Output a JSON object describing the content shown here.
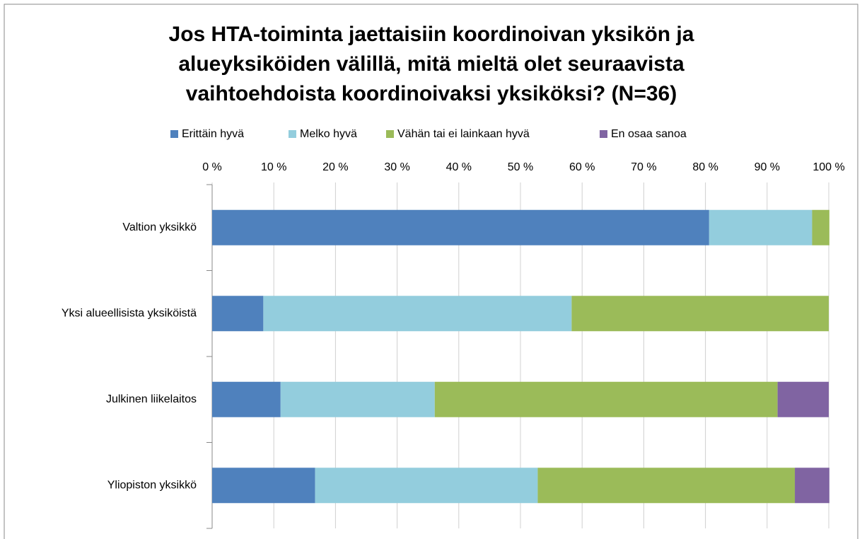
{
  "chart_data": {
    "type": "stacked_bar_horizontal",
    "title": "Jos HTA-toiminta jaettaisiin koordinoivan yksikön ja alueyksiköiden välillä, mitä mieltä olet seuraavista vaihtoehdoista koordinoivaksi yksiköksi? (N=36)",
    "categories": [
      "Valtion yksikkö",
      "Yksi alueellisista yksiköistä",
      "Julkinen liikelaitos",
      "Yliopiston yksikkö"
    ],
    "series": [
      {
        "name": "Erittäin hyvä",
        "color": "#4f81bd",
        "values": [
          80.6,
          8.3,
          11.1,
          16.7
        ]
      },
      {
        "name": "Melko hyvä",
        "color": "#93cddd",
        "values": [
          16.7,
          50,
          25,
          36.1
        ]
      },
      {
        "name": "Vähän tai ei lainkaan hyvä",
        "color": "#9bbb59",
        "values": [
          2.8,
          41.7,
          55.6,
          41.7
        ]
      },
      {
        "name": "En osaa sanoa",
        "color": "#8064a2",
        "values": [
          0,
          0,
          8.3,
          5.6
        ]
      }
    ],
    "xlim": [
      0,
      100
    ],
    "xticks": [
      {
        "value": 0,
        "label": "0 %"
      },
      {
        "value": 10,
        "label": "10 %"
      },
      {
        "value": 20,
        "label": "20 %"
      },
      {
        "value": 30,
        "label": "30 %"
      },
      {
        "value": 40,
        "label": "40 %"
      },
      {
        "value": 50,
        "label": "50 %"
      },
      {
        "value": 60,
        "label": "60 %"
      },
      {
        "value": 70,
        "label": "70 %"
      },
      {
        "value": 80,
        "label": "80 %"
      },
      {
        "value": 90,
        "label": "90 %"
      },
      {
        "value": 100,
        "label": "100 %"
      }
    ],
    "grid": true,
    "legend": "top"
  }
}
